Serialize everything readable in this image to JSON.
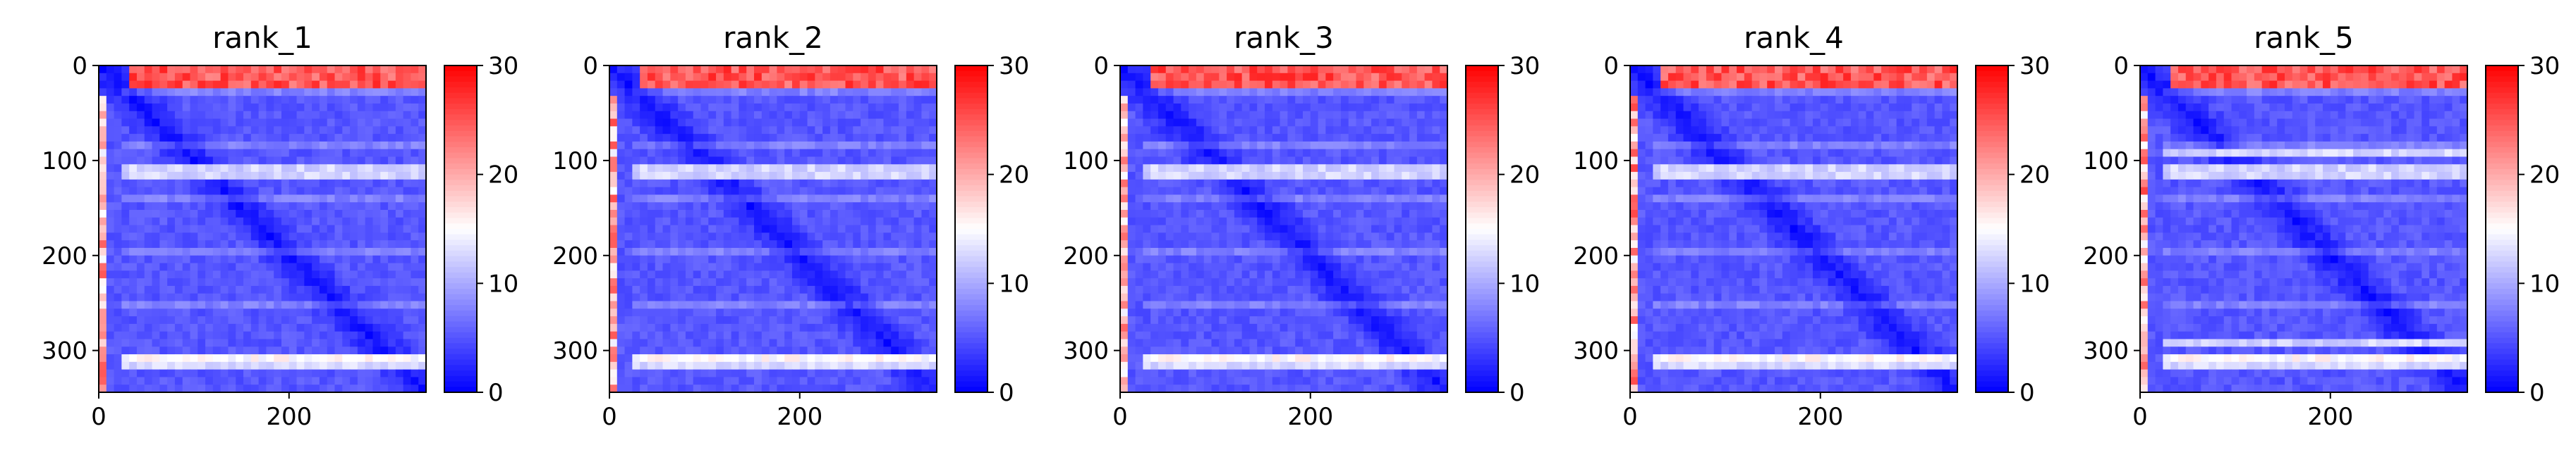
{
  "figure": {
    "colormap": "bwr",
    "colors": {
      "low": "#0000ff",
      "mid": "#ffffff",
      "high": "#ff0000"
    }
  },
  "chart_data": [
    {
      "type": "heatmap",
      "title": "rank_1",
      "xlim": [
        0,
        344
      ],
      "ylim": [
        344,
        0
      ],
      "xticks": [
        "0",
        "200"
      ],
      "xtick_values": [
        0,
        200
      ],
      "yticks": [
        "0",
        "100",
        "200",
        "300"
      ],
      "ytick_values": [
        0,
        100,
        200,
        300
      ],
      "colorbar": {
        "range": [
          0,
          30
        ],
        "ticks": [
          "0",
          "10",
          "20",
          "30"
        ],
        "tick_values": [
          0,
          10,
          20,
          30
        ]
      },
      "bright_rows": [
        112,
        312
      ]
    },
    {
      "type": "heatmap",
      "title": "rank_2",
      "xlim": [
        0,
        344
      ],
      "ylim": [
        344,
        0
      ],
      "xticks": [
        "0",
        "200"
      ],
      "xtick_values": [
        0,
        200
      ],
      "yticks": [
        "0",
        "100",
        "200",
        "300"
      ],
      "ytick_values": [
        0,
        100,
        200,
        300
      ],
      "colorbar": {
        "range": [
          0,
          30
        ],
        "ticks": [
          "0",
          "10",
          "20",
          "30"
        ],
        "tick_values": [
          0,
          10,
          20,
          30
        ]
      },
      "bright_rows": [
        112,
        312
      ]
    },
    {
      "type": "heatmap",
      "title": "rank_3",
      "xlim": [
        0,
        344
      ],
      "ylim": [
        344,
        0
      ],
      "xticks": [
        "0",
        "200"
      ],
      "xtick_values": [
        0,
        200
      ],
      "yticks": [
        "0",
        "100",
        "200",
        "300"
      ],
      "ytick_values": [
        0,
        100,
        200,
        300
      ],
      "colorbar": {
        "range": [
          0,
          30
        ],
        "ticks": [
          "0",
          "10",
          "20",
          "30"
        ],
        "tick_values": [
          0,
          10,
          20,
          30
        ]
      },
      "bright_rows": [
        112,
        312
      ]
    },
    {
      "type": "heatmap",
      "title": "rank_4",
      "xlim": [
        0,
        344
      ],
      "ylim": [
        344,
        0
      ],
      "xticks": [
        "0",
        "200"
      ],
      "xtick_values": [
        0,
        200
      ],
      "yticks": [
        "0",
        "100",
        "200",
        "300"
      ],
      "ytick_values": [
        0,
        100,
        200,
        300
      ],
      "colorbar": {
        "range": [
          0,
          30
        ],
        "ticks": [
          "0",
          "10",
          "20",
          "30"
        ],
        "tick_values": [
          0,
          10,
          20,
          30
        ]
      },
      "bright_rows": [
        112,
        312
      ]
    },
    {
      "type": "heatmap",
      "title": "rank_5",
      "xlim": [
        0,
        344
      ],
      "ylim": [
        344,
        0
      ],
      "xticks": [
        "0",
        "200"
      ],
      "xtick_values": [
        0,
        200
      ],
      "yticks": [
        "0",
        "100",
        "200",
        "300"
      ],
      "ytick_values": [
        0,
        100,
        200,
        300
      ],
      "colorbar": {
        "range": [
          0,
          30
        ],
        "ticks": [
          "0",
          "10",
          "20",
          "30"
        ],
        "tick_values": [
          0,
          10,
          20,
          30
        ]
      },
      "bright_rows": [
        95,
        112,
        290,
        312
      ]
    }
  ]
}
